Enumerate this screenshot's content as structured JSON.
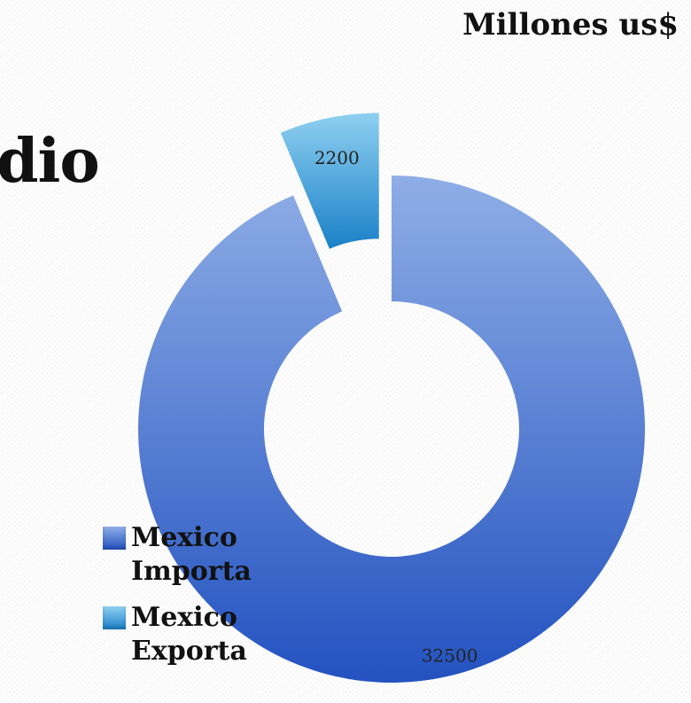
{
  "slide": {
    "title_fragment": "dio"
  },
  "chart_data": {
    "type": "pie",
    "subtype": "doughnut-exploded",
    "title": "Millones us$",
    "series": [
      {
        "name": "Mexico Importa",
        "value": 32500,
        "label": "32500",
        "color_light": "#8faee6",
        "color_dark": "#2352c0"
      },
      {
        "name": "Mexico Exporta",
        "value": 2200,
        "label": "2200",
        "color_light": "#8fd0f0",
        "color_dark": "#1a80c8"
      }
    ],
    "legend_position": "bottom-left"
  }
}
